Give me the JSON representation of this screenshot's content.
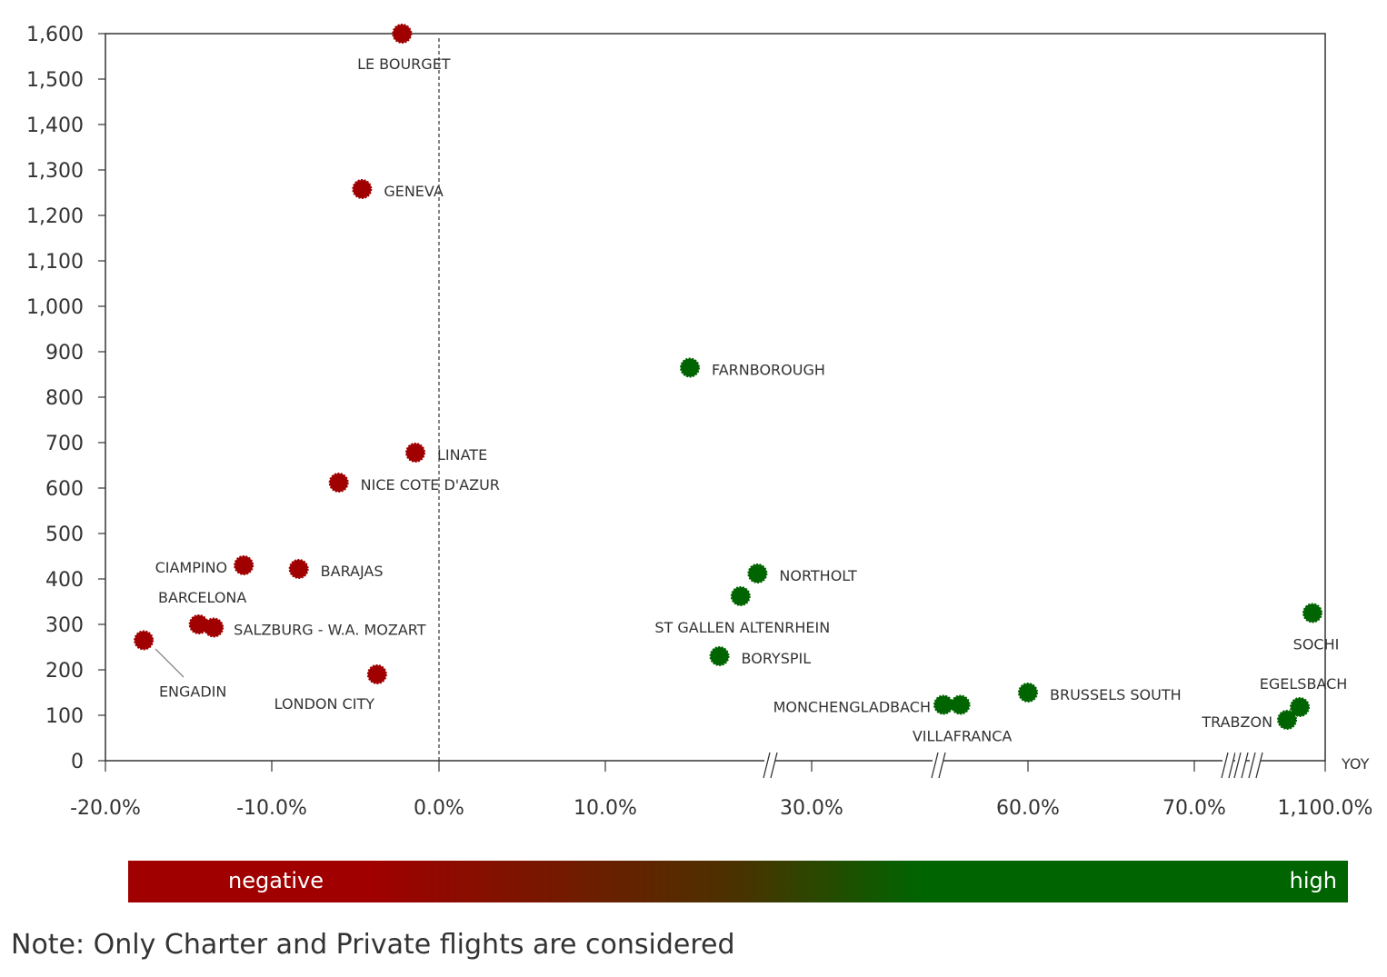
{
  "chart_data": {
    "type": "scatter",
    "title": "",
    "xlabel": "YOY",
    "ylabel": "",
    "ylim": [
      0,
      1600
    ],
    "yticks": [
      "0",
      "100",
      "200",
      "300",
      "400",
      "500",
      "600",
      "700",
      "800",
      "900",
      "1,000",
      "1,100",
      "1,200",
      "1,300",
      "1,400",
      "1,500",
      "1,600"
    ],
    "xaxis_broken": true,
    "xtick_labels": [
      "-20.0%",
      "-10.0%",
      "0.0%",
      "10.0%",
      "30.0%",
      "60.0%",
      "70.0%",
      "1,100.0%"
    ],
    "reference_line_x": 0.0,
    "grid": false,
    "series": [
      {
        "name": "negative",
        "color": "#a00000",
        "points": [
          {
            "label": "LE BOURGET",
            "x": -2.2,
            "y": 1600
          },
          {
            "label": "GENEVA",
            "x": -4.6,
            "y": 1258
          },
          {
            "label": "LINATE",
            "x": -1.4,
            "y": 678
          },
          {
            "label": "NICE COTE D'AZUR",
            "x": -6.0,
            "y": 612
          },
          {
            "label": "CIAMPINO",
            "x": -11.7,
            "y": 430
          },
          {
            "label": "BARAJAS",
            "x": -8.4,
            "y": 422
          },
          {
            "label": "BARCELONA",
            "x": -14.4,
            "y": 300
          },
          {
            "label": "SALZBURG - W.A. MOZART",
            "x": -13.5,
            "y": 293
          },
          {
            "label": "ENGADIN",
            "x": -17.7,
            "y": 265
          },
          {
            "label": "LONDON CITY",
            "x": -3.7,
            "y": 190
          }
        ]
      },
      {
        "name": "high",
        "color": "#006400",
        "points": [
          {
            "label": "FARNBOROUGH",
            "x": 20.0,
            "y": 865
          },
          {
            "label": "NORTHOLT",
            "x": 28.0,
            "y": 412
          },
          {
            "label": "ST GALLEN ALTENRHEIN",
            "x": 26.0,
            "y": 362
          },
          {
            "label": "BORYSPIL",
            "x": 23.5,
            "y": 230
          },
          {
            "label": "MONCHENGLADBACH",
            "x": 50.0,
            "y": 123
          },
          {
            "label": "VILLAFRANCA",
            "x": 52.0,
            "y": 123
          },
          {
            "label": "BRUSSELS SOUTH",
            "x": 60.0,
            "y": 150
          },
          {
            "label": "SOCHI",
            "x": 1000.0,
            "y": 325
          },
          {
            "label": "EGELSBACH",
            "x": 900.0,
            "y": 118
          },
          {
            "label": "TRABZON",
            "x": 800.0,
            "y": 90
          }
        ]
      }
    ],
    "legend": {
      "placement": "bottom",
      "labels": [
        "negative",
        "high"
      ]
    }
  },
  "note": "Note: Only Charter and Private flights are considered"
}
